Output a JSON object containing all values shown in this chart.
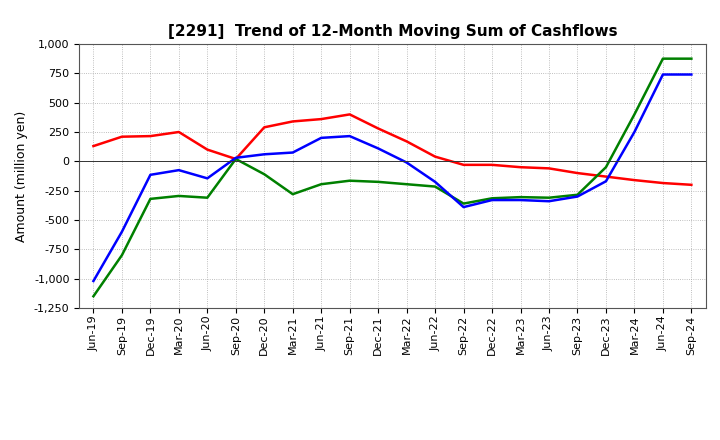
{
  "title": "[2291]  Trend of 12-Month Moving Sum of Cashflows",
  "ylabel": "Amount (million yen)",
  "x_labels": [
    "Jun-19",
    "Sep-19",
    "Dec-19",
    "Mar-20",
    "Jun-20",
    "Sep-20",
    "Dec-20",
    "Mar-21",
    "Jun-21",
    "Sep-21",
    "Dec-21",
    "Mar-22",
    "Jun-22",
    "Sep-22",
    "Dec-22",
    "Mar-23",
    "Jun-23",
    "Sep-23",
    "Dec-23",
    "Mar-24",
    "Jun-24",
    "Sep-24"
  ],
  "operating": [
    130,
    210,
    215,
    250,
    100,
    20,
    290,
    340,
    360,
    400,
    280,
    170,
    40,
    -30,
    -30,
    -50,
    -60,
    -100,
    -130,
    -160,
    -185,
    -200
  ],
  "investing": [
    -1150,
    -800,
    -320,
    -295,
    -310,
    20,
    -110,
    -280,
    -195,
    -165,
    -175,
    -195,
    -215,
    -360,
    -315,
    -305,
    -310,
    -285,
    -50,
    400,
    875,
    875
  ],
  "free": [
    -1020,
    -600,
    -115,
    -75,
    -145,
    30,
    60,
    75,
    200,
    215,
    110,
    -10,
    -175,
    -390,
    -330,
    -330,
    -340,
    -300,
    -170,
    250,
    740,
    740
  ],
  "operating_color": "#ff0000",
  "investing_color": "#008000",
  "free_color": "#0000ff",
  "background_color": "#ffffff",
  "grid_color": "#aaaaaa",
  "ylim": [
    -1250,
    1000
  ],
  "yticks": [
    -1250,
    -1000,
    -750,
    -500,
    -250,
    0,
    250,
    500,
    750,
    1000
  ],
  "title_fontsize": 11,
  "axis_fontsize": 9,
  "tick_fontsize": 8
}
